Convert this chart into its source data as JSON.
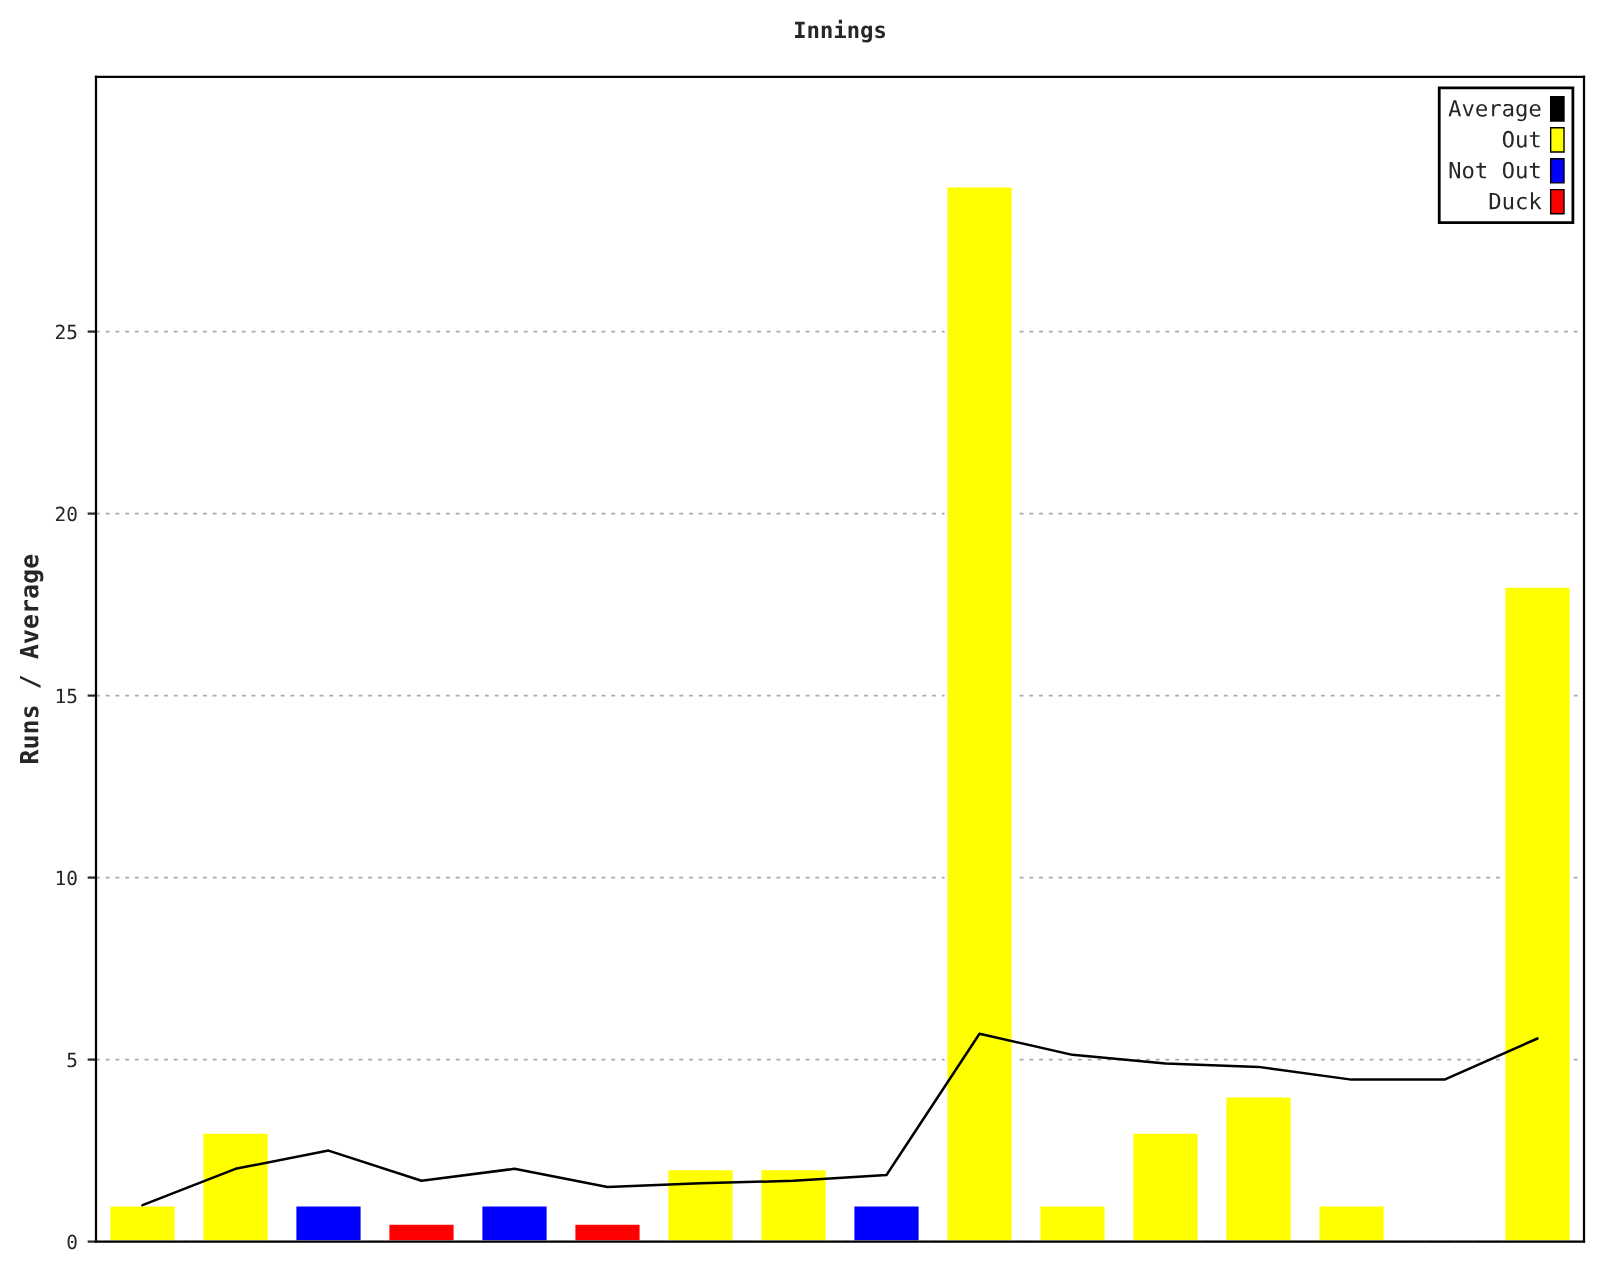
{
  "chart_data": {
    "type": "bar",
    "title": "Innings",
    "ylabel": "Runs / Average",
    "categories": [
      null,
      null,
      null,
      null,
      null,
      null,
      null,
      null,
      null,
      null,
      null,
      null,
      null,
      null,
      null,
      null
    ],
    "series": [
      {
        "name": "Average",
        "type": "line",
        "color": "#000000",
        "values": [
          1,
          2,
          2.5,
          1.67,
          2,
          1.5,
          1.6,
          1.67,
          1.83,
          5.71,
          5.13,
          4.89,
          4.8,
          4.45,
          4.45,
          5.58
        ]
      },
      {
        "name": "Out",
        "color": "#ffff00",
        "values": [
          1,
          3,
          null,
          null,
          null,
          null,
          2,
          2,
          null,
          29,
          1,
          3,
          4,
          1,
          null,
          18
        ]
      },
      {
        "name": "Not Out",
        "color": "#0000ff",
        "values": [
          null,
          null,
          1,
          null,
          1,
          null,
          null,
          null,
          1,
          null,
          null,
          null,
          null,
          null,
          null,
          null
        ]
      },
      {
        "name": "Duck",
        "color": "#ff0000",
        "values": [
          null,
          null,
          null,
          0.5,
          null,
          0.5,
          null,
          null,
          null,
          null,
          null,
          null,
          null,
          null,
          null,
          null
        ]
      }
    ],
    "ylim": [
      0,
      32
    ],
    "yticks": [
      0,
      5,
      10,
      15,
      20,
      25
    ],
    "grid": "y",
    "legend": "top right",
    "tick_labels": "y"
  }
}
